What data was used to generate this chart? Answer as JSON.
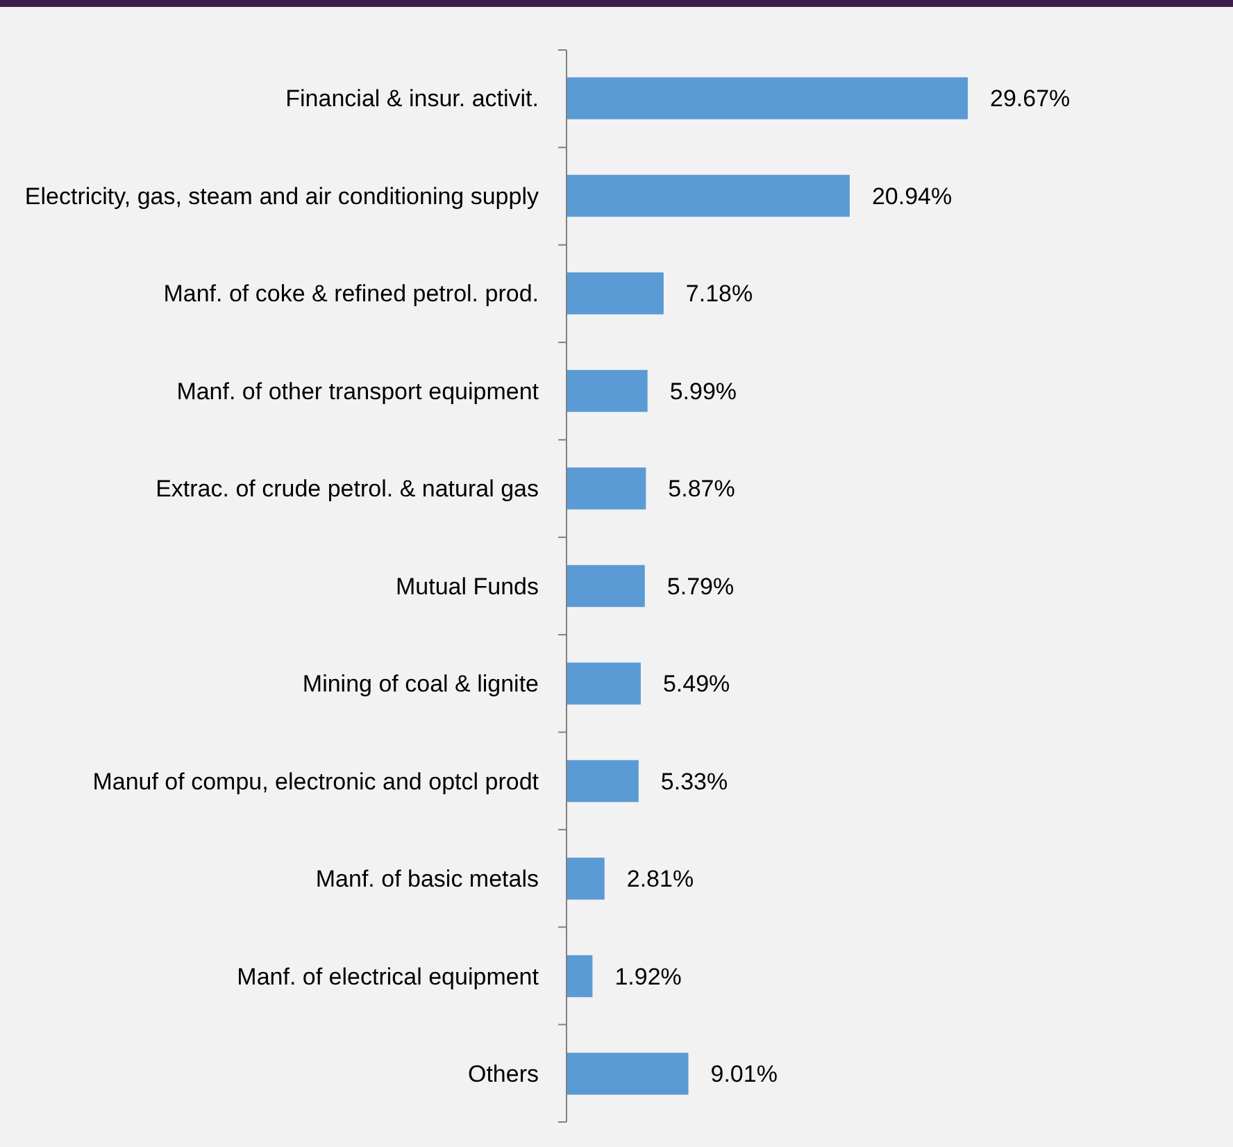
{
  "chart_data": {
    "type": "bar",
    "orientation": "horizontal",
    "categories": [
      "Financial & insur. activit.",
      "Electricity, gas, steam and air conditioning supply",
      "Manf. of coke & refined petrol. prod.",
      "Manf. of other transport equipment",
      "Extrac. of crude petrol. & natural gas",
      "Mutual Funds",
      "Mining of coal & lignite",
      "Manuf of compu, electronic and optcl prodt",
      "Manf. of basic metals",
      "Manf. of electrical equipment",
      "Others"
    ],
    "values": [
      29.67,
      20.94,
      7.18,
      5.99,
      5.87,
      5.79,
      5.49,
      5.33,
      2.81,
      1.92,
      9.01
    ],
    "value_labels": [
      "29.67%",
      "20.94%",
      "7.18%",
      "5.99%",
      "5.87%",
      "5.79%",
      "5.49%",
      "5.33%",
      "2.81%",
      "1.92%",
      "9.01%"
    ],
    "color": "#5b9bd5"
  }
}
